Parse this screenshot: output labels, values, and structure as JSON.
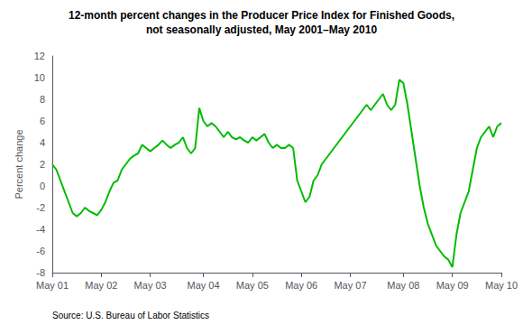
{
  "chart_data": {
    "type": "line",
    "title": "12-month percent changes in the Producer Price Index for Finished Goods,",
    "subtitle": "not seasonally adjusted, May 2001–May 2010",
    "y_label": "Percent change",
    "annotations": [
      "Source: U.S. Bureau of Labor Statistics"
    ],
    "categories": [
      "May 01",
      null,
      null,
      null,
      null,
      null,
      null,
      null,
      null,
      null,
      null,
      null,
      "May 02",
      null,
      null,
      null,
      null,
      null,
      null,
      null,
      null,
      null,
      null,
      null,
      "May 03",
      null,
      null,
      null,
      null,
      null,
      null,
      null,
      null,
      null,
      null,
      null,
      null,
      "May 04",
      null,
      null,
      null,
      null,
      null,
      null,
      null,
      null,
      null,
      null,
      null,
      "May 05",
      null,
      null,
      null,
      null,
      null,
      null,
      null,
      null,
      null,
      null,
      null,
      "May 06",
      null,
      null,
      null,
      null,
      null,
      null,
      null,
      null,
      null,
      null,
      null,
      "May 07",
      null,
      null,
      null,
      null,
      null,
      null,
      null,
      null,
      null,
      null,
      null,
      null,
      "May 08",
      null,
      null,
      null,
      null,
      null,
      null,
      null,
      null,
      null,
      null,
      null,
      "May 09",
      null,
      null,
      null,
      null,
      null,
      null,
      null,
      null,
      null,
      null,
      null,
      "May 10"
    ],
    "values": [
      2.0,
      1.5,
      0.5,
      -0.5,
      -1.5,
      -2.5,
      -2.8,
      -2.5,
      -2.0,
      -2.3,
      -2.5,
      -2.7,
      -2.2,
      -1.5,
      -0.5,
      0.3,
      0.5,
      1.5,
      2.0,
      2.5,
      2.8,
      3.0,
      3.8,
      3.5,
      3.2,
      3.5,
      3.8,
      4.2,
      3.8,
      3.5,
      3.8,
      4.0,
      4.5,
      3.5,
      3.0,
      3.5,
      7.2,
      6.0,
      5.5,
      5.8,
      5.5,
      5.0,
      4.5,
      5.0,
      4.5,
      4.3,
      4.5,
      4.2,
      4.0,
      4.5,
      4.2,
      4.5,
      4.8,
      4.0,
      3.5,
      3.8,
      3.5,
      3.5,
      3.8,
      3.5,
      0.5,
      -0.5,
      -1.5,
      -1.0,
      0.5,
      1.0,
      2.0,
      2.5,
      3.0,
      3.5,
      4.0,
      4.5,
      5.0,
      5.5,
      6.0,
      6.5,
      7.0,
      7.5,
      7.0,
      7.5,
      8.0,
      8.5,
      7.5,
      7.0,
      7.5,
      9.8,
      9.5,
      7.5,
      5.0,
      2.5,
      0.0,
      -2.0,
      -3.5,
      -4.5,
      -5.5,
      -6.0,
      -6.5,
      -6.8,
      -7.5,
      -4.5,
      -2.5,
      -1.5,
      -0.5,
      1.5,
      3.5,
      4.5,
      5.0,
      5.5,
      4.5,
      5.5,
      5.8
    ],
    "color": "#00BB00",
    "ylim": [
      -8,
      12
    ],
    "yticks": [
      -8,
      -6,
      -4,
      -2,
      0,
      2,
      4,
      6,
      8,
      10,
      12
    ],
    "grid": false
  }
}
